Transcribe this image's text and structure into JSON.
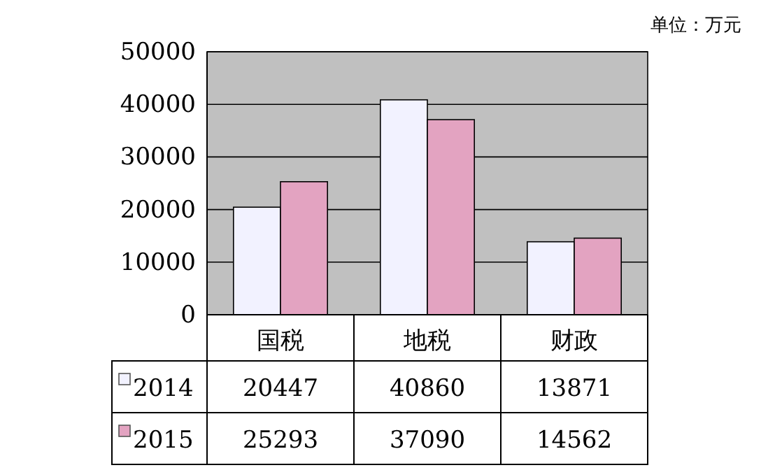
{
  "chart_data": {
    "type": "bar",
    "annotations": [
      "单位：万元"
    ],
    "categories": [
      "国税",
      "地税",
      "财政"
    ],
    "series": [
      {
        "name": "2014",
        "color": "#f2f2ff",
        "values": [
          20447,
          40860,
          13871
        ]
      },
      {
        "name": "2015",
        "color": "#e3a3c1",
        "values": [
          25293,
          37090,
          14562
        ]
      }
    ],
    "ylim": [
      0,
      50000
    ],
    "yticks": [
      0,
      10000,
      20000,
      30000,
      40000,
      50000
    ],
    "grid": "y",
    "data_labels": true,
    "legend": "bottom left"
  }
}
